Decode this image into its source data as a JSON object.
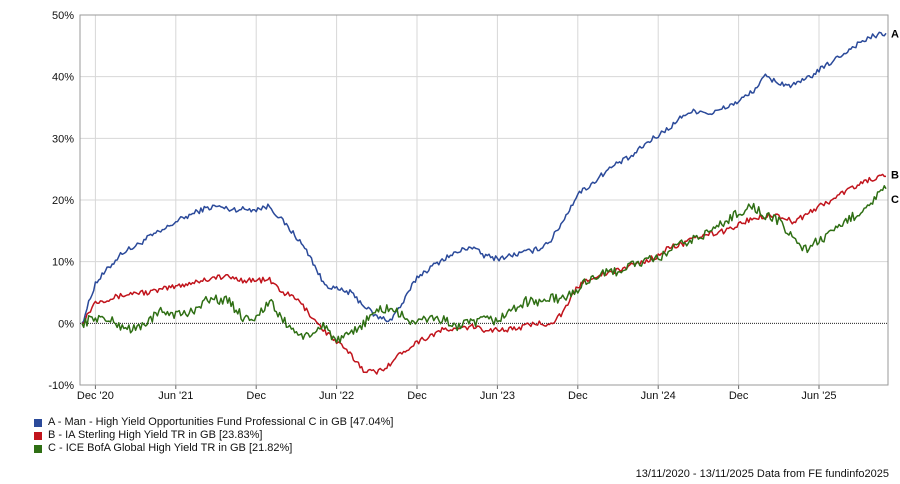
{
  "chart_data": {
    "type": "line",
    "xlabel": "",
    "ylabel": "",
    "x_ticks": [
      "Dec '20",
      "Jun '21",
      "Dec",
      "Jun '22",
      "Dec",
      "Jun '23",
      "Dec",
      "Jun '24",
      "Dec",
      "Jun '25"
    ],
    "y_ticks": [
      "50%",
      "40%",
      "30%",
      "20%",
      "10%",
      "0%",
      "-10%"
    ],
    "ylim": [
      -10,
      50
    ],
    "grid": true,
    "legend_position": "bottom-left",
    "x": [
      "Nov 20",
      "Dec 20",
      "Jan 21",
      "Feb 21",
      "Mar 21",
      "Apr 21",
      "May 21",
      "Jun 21",
      "Jul 21",
      "Aug 21",
      "Sep 21",
      "Oct 21",
      "Nov 21",
      "Dec 21",
      "Jan 22",
      "Feb 22",
      "Mar 22",
      "Apr 22",
      "May 22",
      "Jun 22",
      "Jul 22",
      "Aug 22",
      "Sep 22",
      "Oct 22",
      "Nov 22",
      "Dec 22",
      "Jan 23",
      "Feb 23",
      "Mar 23",
      "Apr 23",
      "May 23",
      "Jun 23",
      "Jul 23",
      "Aug 23",
      "Sep 23",
      "Oct 23",
      "Nov 23",
      "Dec 23",
      "Jan 24",
      "Feb 24",
      "Mar 24",
      "Apr 24",
      "May 24",
      "Jun 24",
      "Jul 24",
      "Aug 24",
      "Sep 24",
      "Oct 24",
      "Nov 24",
      "Dec 24",
      "Jan 25",
      "Feb 25",
      "Mar 25",
      "Apr 25",
      "May 25",
      "Jun 25",
      "Jul 25",
      "Aug 25",
      "Sep 25",
      "Oct 25",
      "Nov 25"
    ],
    "series": [
      {
        "name": "A - Man - High Yield Opportunities Fund Professional C in GB [47.04%]",
        "end_label": "A",
        "color": "#2b4a9a",
        "values": [
          0,
          6.5,
          9,
          11.5,
          12.5,
          14,
          15,
          16.5,
          17.5,
          18.5,
          19,
          18.5,
          18.5,
          18.5,
          19,
          16.5,
          14,
          11,
          6.5,
          5.5,
          5,
          3,
          1,
          0.5,
          3.5,
          7.5,
          9,
          10.5,
          11.5,
          12.5,
          11,
          10.5,
          11,
          11.5,
          12,
          13.5,
          17,
          21,
          22.5,
          24.5,
          26,
          27,
          29,
          30.5,
          32,
          34,
          34.5,
          34,
          35,
          36,
          37.5,
          40,
          39,
          38.5,
          39.5,
          41,
          42.5,
          44,
          45.5,
          46.5,
          47.04
        ]
      },
      {
        "name": "B - IA Sterling High Yield TR in GB [23.83%]",
        "end_label": "B",
        "color": "#c1141c",
        "values": [
          0,
          3.5,
          4,
          4.5,
          5,
          5,
          5.5,
          6,
          6.5,
          7,
          7.5,
          7.5,
          7,
          7,
          7,
          5,
          4,
          1.5,
          -1,
          -3,
          -5,
          -7.5,
          -8,
          -6.5,
          -4.5,
          -3,
          -2,
          -1,
          -1,
          -0.5,
          -1,
          -1,
          -1,
          -0.5,
          0,
          0,
          2,
          6,
          7.5,
          8,
          8.5,
          9.5,
          10,
          11,
          12.5,
          13,
          14,
          14.5,
          15,
          16,
          17,
          17.5,
          17.5,
          16.5,
          17.5,
          19,
          20,
          21.5,
          22.5,
          23.5,
          23.83
        ]
      },
      {
        "name": "C - ICE BofA Global High Yield TR in GB [21.82%]",
        "end_label": "C",
        "color": "#2f6f14",
        "values": [
          0,
          1,
          0.5,
          -0.5,
          -1,
          0.5,
          2,
          1.5,
          1.5,
          3.5,
          4,
          3.5,
          1,
          1,
          3.5,
          0.5,
          -1.5,
          -2.5,
          0,
          -3,
          -2,
          0,
          2,
          2.5,
          1,
          0,
          1,
          0.5,
          -0.5,
          0,
          0.5,
          0.5,
          2,
          3.5,
          3.5,
          4,
          4,
          5.5,
          7.5,
          8,
          8.5,
          9.5,
          10,
          10.5,
          12,
          13,
          14,
          15,
          16.5,
          18,
          19,
          17.5,
          16.5,
          14,
          12,
          13.5,
          14.5,
          16.5,
          18,
          20,
          21.82
        ]
      }
    ],
    "footer": "13/11/2020 - 13/11/2025 Data from FE fundinfo2025"
  }
}
